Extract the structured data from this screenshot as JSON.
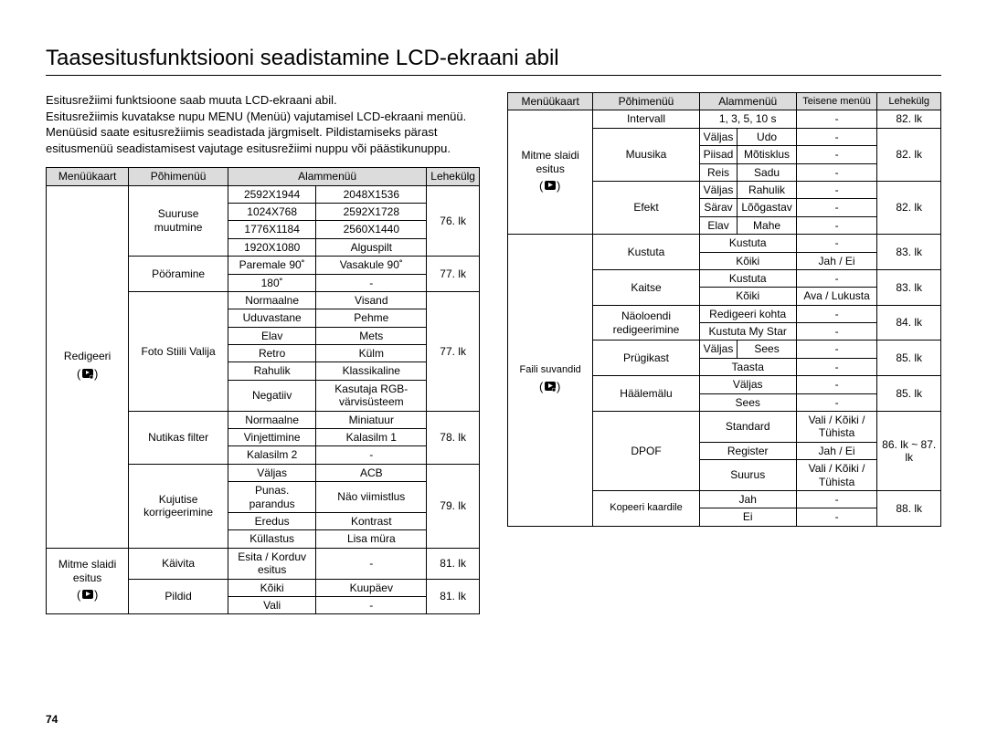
{
  "title": "Taasesitusfunktsiooni seadistamine LCD-ekraani abil",
  "intro": "Esitusrežiimi funktsioone saab muuta LCD-ekraani abil.\nEsitusrežiimis kuvatakse nupu MENU (Menüü) vajutamisel LCD-ekraani menüü.\nMenüüsid saate esitusrežiimis seadistada järgmiselt. Pildistamiseks pärast esitusmenüü seadistamisest vajutage esitusrežiimi nuppu või päästikunuppu.",
  "header": {
    "menuukaart": "Menüükaart",
    "pohimenuu": "Põhimenüü",
    "alammenuu": "Alammenüü",
    "teisene": "Teisene menüü",
    "lehekylg": "Lehekülg"
  },
  "left": {
    "redigeeri": "Redigeeri",
    "suuruse": "Suuruse muutmine",
    "pooramine": "Pööramine",
    "fotostiili": "Foto Stiili Valija",
    "nutikas": "Nutikas filter",
    "kujutise": "Kujutise korrigeerimine",
    "r": [
      [
        "2592X1944",
        "2048X1536"
      ],
      [
        "1024X768",
        "2592X1728"
      ],
      [
        "1776X1184",
        "2560X1440"
      ],
      [
        "1920X1080",
        "Alguspilt"
      ]
    ],
    "p76": "76. lk",
    "poor": [
      [
        "Paremale 90˚",
        "Vasakule 90˚"
      ],
      [
        "180˚",
        "-"
      ]
    ],
    "p77a": "77. lk",
    "foto": [
      [
        "Normaalne",
        "Visand"
      ],
      [
        "Uduvastane",
        "Pehme"
      ],
      [
        "Elav",
        "Mets"
      ],
      [
        "Retro",
        "Külm"
      ],
      [
        "Rahulik",
        "Klassikaline"
      ],
      [
        "Negatiiv",
        "Kasutaja RGB-värvisüsteem"
      ]
    ],
    "p77b": "77. lk",
    "nut": [
      [
        "Normaalne",
        "Miniatuur"
      ],
      [
        "Vinjettimine",
        "Kalasilm 1"
      ],
      [
        "Kalasilm 2",
        "-"
      ]
    ],
    "p78": "78. lk",
    "kuj": [
      [
        "Väljas",
        "ACB"
      ],
      [
        "Punas. parandus",
        "Näo viimistlus"
      ],
      [
        "Eredus",
        "Kontrast"
      ],
      [
        "Küllastus",
        "Lisa müra"
      ]
    ],
    "p79": "79. lk",
    "mitme": "Mitme slaidi esitus",
    "kaivita": "Käivita",
    "kaivita_val": "Esita / Korduv esitus",
    "p81a": "81. lk",
    "pildid": "Pildid",
    "pildid_rows": [
      [
        "Kõiki",
        "Kuupäev"
      ],
      [
        "Vali",
        "-"
      ]
    ],
    "p81b": "81. lk"
  },
  "right": {
    "mitme": "Mitme slaidi esitus",
    "intervall": "Intervall",
    "intervall_val": "1, 3, 5, 10 s",
    "p82a": "82. lk",
    "muusika": "Muusika",
    "muusika_rows": [
      [
        "Väljas",
        "Udo",
        "-"
      ],
      [
        "Piisad",
        "Mõtisklus",
        "-"
      ],
      [
        "Reis",
        "Sadu",
        "-"
      ]
    ],
    "p82b": "82. lk",
    "efekt": "Efekt",
    "efekt_rows": [
      [
        "Väljas",
        "Rahulik",
        "-"
      ],
      [
        "Särav",
        "Lõõgastav",
        "-"
      ],
      [
        "Elav",
        "Mahe",
        "-"
      ]
    ],
    "p82c": "82. lk",
    "faili": "Faili suvandid",
    "kustuta": "Kustuta",
    "kustuta_rows": [
      [
        "Kustuta",
        "-"
      ],
      [
        "Kõiki",
        "Jah / Ei"
      ]
    ],
    "p83a": "83. lk",
    "kaitse": "Kaitse",
    "kaitse_rows": [
      [
        "Kustuta",
        "-"
      ],
      [
        "Kõiki",
        "Ava / Lukusta"
      ]
    ],
    "p83b": "83. lk",
    "naoloendi": "Näoloendi redigeerimine",
    "naoloendi_rows": [
      [
        "Redigeeri kohta",
        "-"
      ],
      [
        "Kustuta My Star",
        "-"
      ]
    ],
    "p84": "84. lk",
    "prugikast": "Prügikast",
    "prugikast_rows": [
      [
        "Väljas",
        "Sees",
        "-"
      ],
      [
        "Taasta",
        "-",
        "-"
      ]
    ],
    "p85a": "85. lk",
    "haalemalu": "Häälemälu",
    "haalemalu_rows": [
      [
        "Väljas",
        "-"
      ],
      [
        "Sees",
        "-"
      ]
    ],
    "p85b": "85. lk",
    "dpof": "DPOF",
    "dpof_rows": [
      [
        "Standard",
        "Vali / Kõiki / Tühista"
      ],
      [
        "Register",
        "Jah / Ei"
      ],
      [
        "Suurus",
        "Vali / Kõiki / Tühista"
      ]
    ],
    "p86": "86. lk ~ 87. lk",
    "kopeeri": "Kopeeri kaardile",
    "kopeeri_rows": [
      [
        "Jah",
        "-"
      ],
      [
        "Ei",
        "-"
      ]
    ],
    "p88": "88. lk"
  },
  "dash": "-",
  "page_number": "74",
  "colors": {
    "header_bg": "#dcdcdc",
    "border": "#000000",
    "text": "#000000",
    "bg": "#ffffff"
  }
}
